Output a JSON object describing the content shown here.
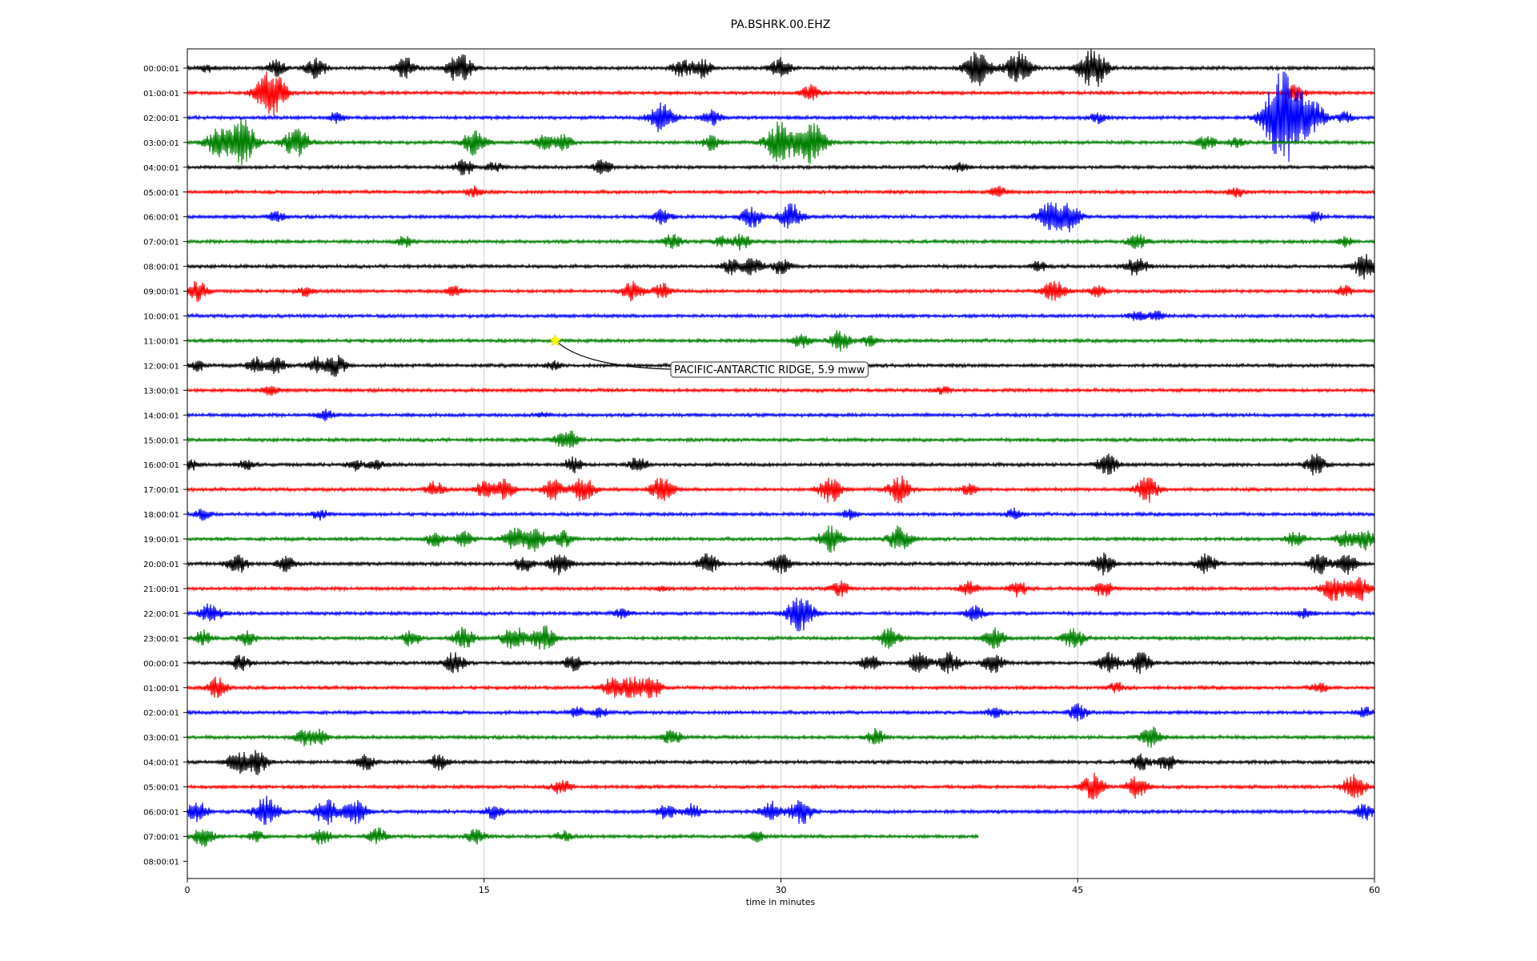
{
  "chart_data": {
    "type": "line",
    "title": "PA.BSHRK.00.EHZ",
    "xlabel": "time in minutes",
    "xlim": [
      0,
      60
    ],
    "x_ticks": [
      0,
      15,
      30,
      45,
      60
    ],
    "x_tick_labels": [
      "0",
      "15",
      "30",
      "45",
      "60"
    ],
    "grid": "vertical",
    "color_cycle": [
      "#000000",
      "#ff0000",
      "#0000ff",
      "#008000"
    ],
    "row_labels": [
      "00:00:01",
      "01:00:01",
      "02:00:01",
      "03:00:01",
      "04:00:01",
      "05:00:01",
      "06:00:01",
      "07:00:01",
      "08:00:01",
      "09:00:01",
      "10:00:01",
      "11:00:01",
      "12:00:01",
      "13:00:01",
      "14:00:01",
      "15:00:01",
      "16:00:01",
      "17:00:01",
      "18:00:01",
      "19:00:01",
      "20:00:01",
      "21:00:01",
      "22:00:01",
      "23:00:01",
      "00:00:01",
      "01:00:01",
      "02:00:01",
      "03:00:01",
      "04:00:01",
      "05:00:01",
      "06:00:01",
      "07:00:01",
      "08:00:01"
    ],
    "last_trace_end_minute": 40,
    "bursts": [
      [
        [
          1,
          1.5
        ],
        [
          4.5,
          3
        ],
        [
          6.5,
          4
        ],
        [
          11,
          4
        ],
        [
          13.5,
          3.5
        ],
        [
          14,
          4
        ],
        [
          25,
          3.5
        ],
        [
          26,
          3.5
        ],
        [
          30,
          4
        ],
        [
          40,
          7
        ],
        [
          42,
          6
        ],
        [
          45.5,
          5
        ],
        [
          46,
          5
        ]
      ],
      [
        [
          4,
          6
        ],
        [
          4.5,
          5
        ],
        [
          31.5,
          3
        ],
        [
          56,
          3
        ]
      ],
      [
        [
          7.5,
          2
        ],
        [
          24,
          6
        ],
        [
          26.5,
          3
        ],
        [
          46,
          2
        ],
        [
          55,
          8
        ],
        [
          55.5,
          10
        ],
        [
          56,
          7
        ],
        [
          57,
          5
        ],
        [
          58.5,
          2
        ]
      ],
      [
        [
          1.5,
          5
        ],
        [
          2.5,
          6
        ],
        [
          3,
          5
        ],
        [
          5.5,
          6
        ],
        [
          14.5,
          5
        ],
        [
          18,
          3
        ],
        [
          19,
          3
        ],
        [
          26.5,
          3
        ],
        [
          30,
          8
        ],
        [
          31.5,
          8
        ],
        [
          51.5,
          3
        ],
        [
          53,
          2
        ]
      ],
      [
        [
          14,
          3
        ],
        [
          15.5,
          2
        ],
        [
          21,
          3
        ],
        [
          39,
          2
        ]
      ],
      [
        [
          14.5,
          2
        ],
        [
          41,
          2
        ],
        [
          53,
          2
        ]
      ],
      [
        [
          4.5,
          2
        ],
        [
          24,
          3
        ],
        [
          28.5,
          4
        ],
        [
          30.5,
          5
        ],
        [
          43.5,
          5
        ],
        [
          44.5,
          6
        ],
        [
          57,
          2
        ]
      ],
      [
        [
          11,
          2
        ],
        [
          24.5,
          3
        ],
        [
          27,
          2
        ],
        [
          28,
          3
        ],
        [
          48,
          3
        ],
        [
          58.5,
          2
        ]
      ],
      [
        [
          27.5,
          3
        ],
        [
          28.5,
          4
        ],
        [
          30,
          3
        ],
        [
          43,
          2
        ],
        [
          48,
          4
        ],
        [
          59.5,
          5
        ]
      ],
      [
        [
          0.5,
          4
        ],
        [
          6,
          2
        ],
        [
          13.5,
          2
        ],
        [
          22.5,
          4
        ],
        [
          24,
          3
        ],
        [
          43.5,
          2
        ],
        [
          44,
          3
        ],
        [
          46,
          2
        ],
        [
          58.5,
          2
        ]
      ],
      [
        [
          48,
          2
        ],
        [
          49,
          2
        ]
      ],
      [
        [
          31,
          3
        ],
        [
          33,
          4
        ],
        [
          34.5,
          2
        ]
      ],
      [
        [
          0.5,
          2
        ],
        [
          3.5,
          3
        ],
        [
          4.5,
          3
        ],
        [
          6.5,
          3
        ],
        [
          7.5,
          4
        ],
        [
          18.5,
          1.5
        ]
      ],
      [
        [
          4.2,
          2
        ],
        [
          38.2,
          1.5
        ]
      ],
      [
        [
          7,
          2
        ],
        [
          18,
          1
        ]
      ],
      [
        [
          19,
          3
        ],
        [
          19.5,
          2
        ]
      ],
      [
        [
          0.2,
          2
        ],
        [
          3,
          2
        ],
        [
          8.5,
          2
        ],
        [
          9.5,
          2
        ],
        [
          19.5,
          3
        ],
        [
          22.8,
          3
        ],
        [
          46.5,
          4
        ],
        [
          57,
          4
        ]
      ],
      [
        [
          12.5,
          3
        ],
        [
          15,
          3
        ],
        [
          16,
          4
        ],
        [
          18.5,
          4
        ],
        [
          20,
          5
        ],
        [
          24,
          5
        ],
        [
          32.5,
          5
        ],
        [
          36,
          5
        ],
        [
          39.5,
          2
        ],
        [
          48.5,
          5
        ]
      ],
      [
        [
          0.8,
          2
        ],
        [
          6.7,
          2
        ],
        [
          33.5,
          2
        ],
        [
          41.8,
          2
        ]
      ],
      [
        [
          12.5,
          3
        ],
        [
          14,
          3
        ],
        [
          16.5,
          4
        ],
        [
          17.5,
          5
        ],
        [
          19,
          3
        ],
        [
          32.5,
          5
        ],
        [
          36,
          5
        ],
        [
          56,
          3
        ],
        [
          58.5,
          3
        ],
        [
          59.5,
          4
        ]
      ],
      [
        [
          2.5,
          4
        ],
        [
          5,
          3
        ],
        [
          17,
          3
        ],
        [
          18.8,
          4
        ],
        [
          26.3,
          4
        ],
        [
          30,
          4
        ],
        [
          46.3,
          4
        ],
        [
          51.5,
          4
        ],
        [
          57.2,
          4
        ],
        [
          58.6,
          4
        ]
      ],
      [
        [
          24,
          1
        ],
        [
          33,
          3
        ],
        [
          39.5,
          3
        ],
        [
          42,
          3
        ],
        [
          46.3,
          3
        ],
        [
          57.9,
          5
        ],
        [
          59.2,
          5
        ]
      ],
      [
        [
          1.2,
          4
        ],
        [
          22,
          2
        ],
        [
          31,
          7
        ],
        [
          39.8,
          3
        ],
        [
          56.5,
          2
        ]
      ],
      [
        [
          0.8,
          3
        ],
        [
          3,
          3
        ],
        [
          11.3,
          3
        ],
        [
          14,
          4
        ],
        [
          16.5,
          5
        ],
        [
          18,
          5
        ],
        [
          35.5,
          4
        ],
        [
          40.8,
          4
        ],
        [
          44.8,
          4
        ]
      ],
      [
        [
          2.7,
          3
        ],
        [
          13.5,
          4
        ],
        [
          19.5,
          3
        ],
        [
          34.5,
          3
        ],
        [
          37,
          4
        ],
        [
          38.5,
          4
        ],
        [
          40.7,
          4
        ],
        [
          46.6,
          4
        ],
        [
          48.2,
          4
        ]
      ],
      [
        [
          1.5,
          4
        ],
        [
          21.5,
          4
        ],
        [
          22.5,
          4
        ],
        [
          23.5,
          4
        ],
        [
          47,
          2
        ],
        [
          57.2,
          2
        ]
      ],
      [
        [
          19.7,
          2
        ],
        [
          20.8,
          2
        ],
        [
          40.8,
          2
        ],
        [
          45,
          3
        ],
        [
          59.5,
          2
        ]
      ],
      [
        [
          5.8,
          3
        ],
        [
          6.6,
          3
        ],
        [
          24.5,
          3
        ],
        [
          34.8,
          3
        ],
        [
          48.7,
          4
        ]
      ],
      [
        [
          2.5,
          4
        ],
        [
          3.5,
          5
        ],
        [
          9,
          3
        ],
        [
          12.7,
          3
        ],
        [
          48.2,
          3
        ],
        [
          49.5,
          3
        ]
      ],
      [
        [
          18.9,
          3
        ],
        [
          45.8,
          5
        ],
        [
          48,
          4
        ],
        [
          59,
          5
        ]
      ],
      [
        [
          0.5,
          4
        ],
        [
          4,
          6
        ],
        [
          7,
          5
        ],
        [
          8.5,
          5
        ],
        [
          15.5,
          3
        ],
        [
          24.2,
          3
        ],
        [
          25.5,
          3
        ],
        [
          29.5,
          4
        ],
        [
          31,
          5
        ],
        [
          59.5,
          3
        ]
      ],
      [
        [
          0.8,
          4
        ],
        [
          3.5,
          2
        ],
        [
          6.8,
          3
        ],
        [
          9.6,
          3
        ],
        [
          14.6,
          3
        ],
        [
          19,
          2
        ],
        [
          28.8,
          2
        ]
      ],
      []
    ]
  },
  "annotation": {
    "event_label": "PACIFIC-ANTARCTIC RIDGE, 5.9 mww",
    "marker_row_index": 11,
    "marker_minute": 18.6,
    "marker_color": "#ffff00"
  }
}
